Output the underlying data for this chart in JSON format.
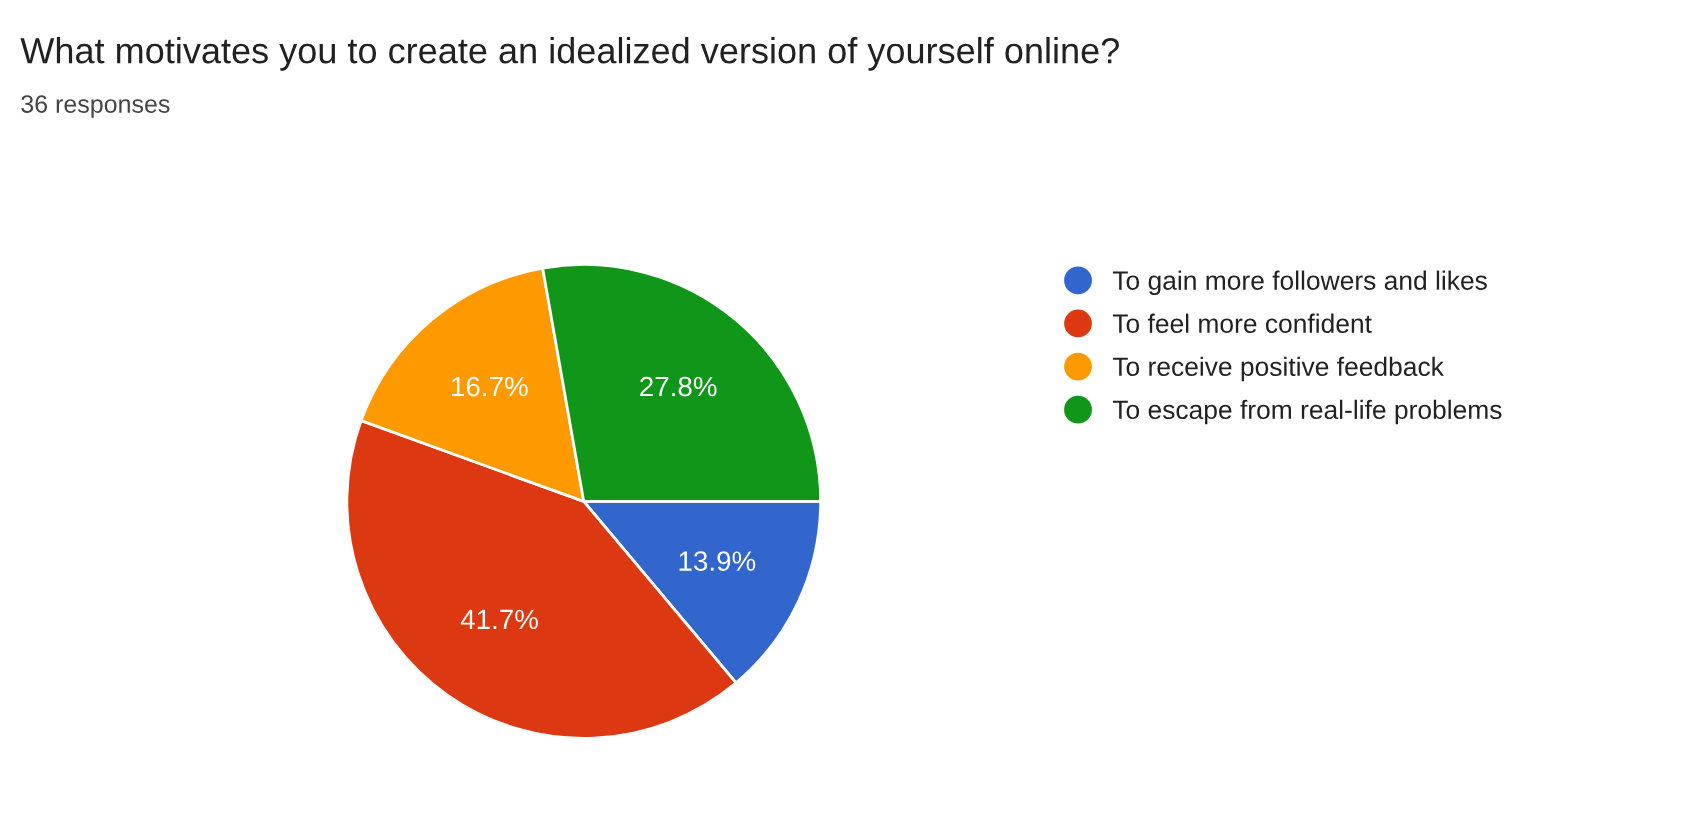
{
  "chart_data": {
    "type": "pie",
    "title": "What motivates you to create an idealized version of yourself online?",
    "subtitle": "36 responses",
    "categories": [
      "To gain more followers and likes",
      "To feel more confident",
      "To receive positive feedback",
      "To escape from real-life problems"
    ],
    "values": [
      13.9,
      41.7,
      16.7,
      27.8
    ],
    "colors": [
      "#3366cc",
      "#dc3912",
      "#ff9900",
      "#109618"
    ],
    "value_labels": [
      "13.9%",
      "41.7%",
      "16.7%",
      "27.8%"
    ],
    "legend": "right"
  }
}
